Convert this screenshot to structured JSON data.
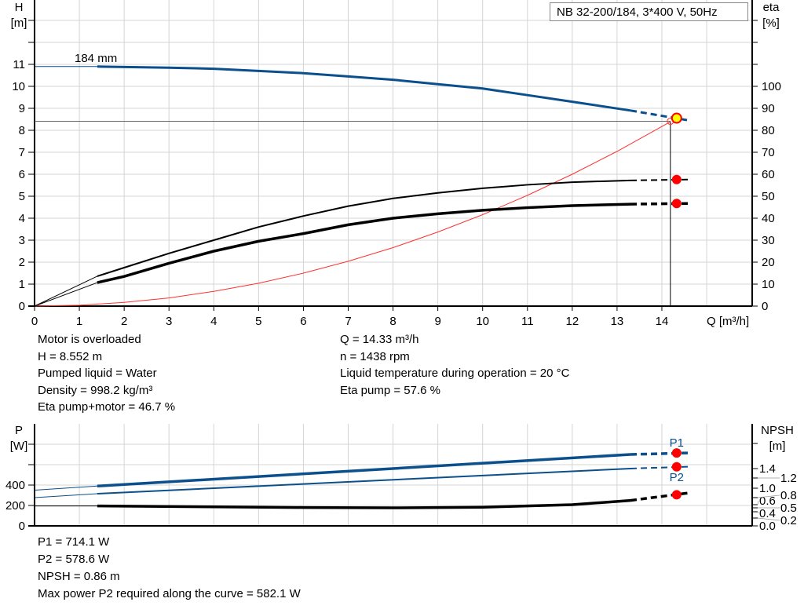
{
  "chart_data": [
    {
      "type": "line",
      "title": "NB 32-200/184, 3*400 V, 50Hz",
      "xlabel": "Q [m³/h]",
      "xlim": [
        0,
        15.5
      ],
      "xticks": [
        0,
        1,
        2,
        3,
        4,
        5,
        6,
        7,
        8,
        9,
        10,
        11,
        12,
        13,
        14
      ],
      "ylabel": "H",
      "ylabel_unit": "[m]",
      "ylim": [
        0,
        14
      ],
      "yticks": [
        0,
        1,
        2,
        3,
        4,
        5,
        6,
        7,
        8,
        9,
        10,
        11
      ],
      "y2label": "eta",
      "y2label_unit": "[%]",
      "y2lim": [
        0,
        140
      ],
      "y2ticks": [
        0,
        10,
        20,
        30,
        40,
        50,
        60,
        70,
        80,
        90,
        100
      ],
      "grid": true,
      "legend": "top-right",
      "series": [
        {
          "name": "184 mm",
          "axis": "H",
          "color": "#0b4f8c",
          "x": [
            0,
            1.4,
            3,
            4,
            5,
            6,
            7,
            8,
            9,
            10,
            11,
            12,
            13.3,
            14.6
          ],
          "y": [
            10.9,
            10.9,
            10.85,
            10.8,
            10.7,
            10.6,
            10.45,
            10.3,
            10.1,
            9.9,
            9.6,
            9.3,
            8.9,
            8.45
          ]
        },
        {
          "axis": "H",
          "color": "#ff3030",
          "style": "system-curve",
          "x": [
            0,
            1,
            2,
            3,
            4,
            5,
            6,
            7,
            8,
            9,
            10,
            11,
            12,
            13,
            14.2
          ],
          "y": [
            0,
            0.04,
            0.17,
            0.37,
            0.67,
            1.04,
            1.5,
            2.04,
            2.66,
            3.37,
            4.16,
            5.04,
            6.0,
            7.04,
            8.4
          ]
        },
        {
          "axis": "eta",
          "color": "#000000",
          "x": [
            0,
            1.4,
            2,
            3,
            4,
            5,
            6,
            7,
            8,
            9,
            10,
            11,
            12,
            13.3,
            14.6
          ],
          "y": [
            0,
            13.6,
            17.5,
            24,
            30,
            36,
            41,
            45.5,
            49,
            51.5,
            53.6,
            55.2,
            56.4,
            57.2,
            57.6
          ]
        },
        {
          "axis": "eta",
          "color": "#000000",
          "x": [
            0,
            1.4,
            2,
            3,
            4,
            5,
            6,
            7,
            8,
            9,
            10,
            11,
            12,
            13.3,
            14.6
          ],
          "y": [
            0,
            10.7,
            13.5,
            19.5,
            25,
            29.5,
            33,
            37,
            40,
            42,
            43.6,
            44.8,
            45.7,
            46.4,
            46.7
          ]
        }
      ],
      "duty_point": {
        "Q": 14.33,
        "H": 8.552,
        "eta_pump": 57.6,
        "eta_pump_motor": 46.7
      }
    },
    {
      "type": "line",
      "xlim": [
        0,
        15.5
      ],
      "ylabel": "P",
      "ylabel_unit": "[W]",
      "ylim": [
        0,
        1000
      ],
      "yticks": [
        0,
        200,
        400
      ],
      "yticks_unlabeled": [
        600,
        800
      ],
      "y2label": "NPSH",
      "y2label_unit": "[m]",
      "y2ticks": [
        "0.0",
        "0.2",
        "0.4",
        "0.5",
        "0.6",
        "0.8",
        "1.0",
        "1.2",
        "1.4"
      ],
      "grid": true,
      "series": [
        {
          "name": "P1",
          "axis": "P",
          "color": "#0b4f8c",
          "x": [
            0,
            1.4,
            13.3,
            14.6
          ],
          "y": [
            350,
            390,
            700,
            715
          ]
        },
        {
          "name": "P2",
          "axis": "P",
          "color": "#0b4f8c",
          "x": [
            0,
            1.4,
            13.3,
            14.6
          ],
          "y": [
            277,
            315,
            562,
            580
          ]
        },
        {
          "axis": "NPSH",
          "color": "#000000",
          "x": [
            0,
            1.4,
            4,
            6,
            8,
            10,
            12,
            13.3,
            14.6
          ],
          "y": [
            0.56,
            0.56,
            0.53,
            0.51,
            0.5,
            0.52,
            0.6,
            0.72,
            0.9
          ]
        }
      ],
      "duty_point": {
        "Q": 14.33,
        "P1": 714.1,
        "P2": 578.6,
        "NPSH": 0.86
      }
    }
  ],
  "info": {
    "left": [
      "Motor is overloaded",
      "H = 8.552 m",
      "Pumped liquid = Water",
      "Density = 998.2 kg/m³",
      "Eta pump+motor = 46.7 %"
    ],
    "right": [
      "Q = 14.33 m³/h",
      "n = 1438 rpm",
      "Liquid temperature during operation = 20 °C",
      "Eta pump = 57.6 %"
    ],
    "bottom": [
      "P1 = 714.1 W",
      "P2 = 578.6 W",
      "NPSH = 0.86 m",
      "Max power P2 required along the curve = 582.1 W"
    ]
  },
  "colors": {
    "head": "#0b4f8c",
    "system": "#ff3030",
    "marker": "#ff0000",
    "duty": "#ffff00",
    "grid": "#d4d4d4"
  }
}
